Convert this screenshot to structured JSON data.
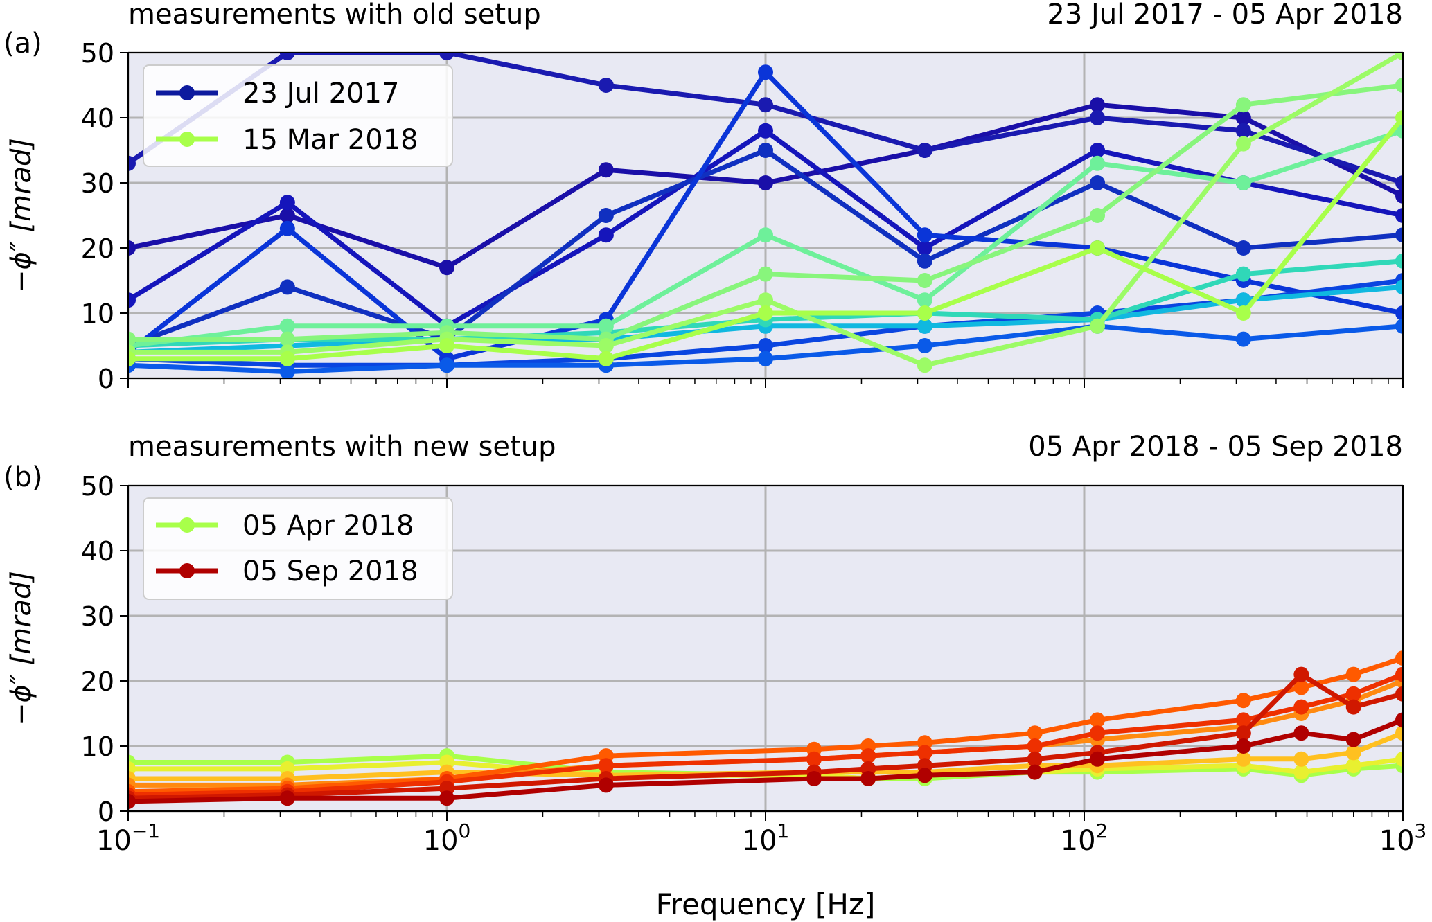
{
  "chart_data": [
    {
      "type": "line",
      "panel_label": "(a)",
      "title_left": "measurements with old setup",
      "title_right": "23 Jul 2017 - 05 Apr 2018",
      "ylabel": "−ϕ″ [mrad]",
      "xlabel": "",
      "xscale": "log",
      "xlim": [
        0.1,
        1000
      ],
      "ylim": [
        0,
        50
      ],
      "yticks": [
        "0",
        "10",
        "20",
        "30",
        "40",
        "50"
      ],
      "grid": true,
      "legend_position": "upper-left",
      "legend": [
        {
          "label": "23 Jul 2017",
          "color": "#0d1a9e"
        },
        {
          "label": "15 Mar 2018",
          "color": "#a8ff4a"
        }
      ],
      "frequencies_hz": [
        0.1,
        0.316,
        1,
        3.16,
        10,
        31.6,
        110,
        316,
        1000
      ],
      "series": [
        {
          "color": "#1a0fa8",
          "values": [
            20,
            25,
            17,
            32,
            30,
            35,
            42,
            40,
            28
          ]
        },
        {
          "color": "#1a1ab0",
          "values": [
            33,
            50,
            50,
            45,
            42,
            35,
            40,
            38,
            30
          ]
        },
        {
          "color": "#1515bb",
          "values": [
            12,
            27,
            8,
            22,
            38,
            20,
            35,
            30,
            25
          ]
        },
        {
          "color": "#1030c0",
          "values": [
            5,
            14,
            6,
            25,
            35,
            18,
            30,
            20,
            22
          ]
        },
        {
          "color": "#0a35d8",
          "values": [
            4,
            23,
            3,
            9,
            47,
            22,
            20,
            15,
            10
          ]
        },
        {
          "color": "#0a45e0",
          "values": [
            3,
            2,
            2,
            3,
            5,
            8,
            10,
            12,
            15
          ]
        },
        {
          "color": "#0a5ae8",
          "values": [
            2,
            1,
            2,
            2,
            3,
            5,
            8,
            6,
            8
          ]
        },
        {
          "color": "#10b8e0",
          "values": [
            4,
            5,
            6,
            6,
            8,
            8,
            9,
            12,
            14
          ]
        },
        {
          "color": "#30d8b8",
          "values": [
            5,
            6,
            6,
            7,
            9,
            10,
            9,
            16,
            18
          ]
        },
        {
          "color": "#6ef09a",
          "values": [
            5,
            8,
            8,
            8,
            22,
            12,
            33,
            30,
            38
          ]
        },
        {
          "color": "#88f57c",
          "values": [
            6,
            6,
            7,
            6,
            16,
            15,
            25,
            42,
            45
          ]
        },
        {
          "color": "#9cfb66",
          "values": [
            4,
            4,
            6,
            5,
            12,
            2,
            8,
            36,
            50
          ]
        },
        {
          "color": "#a8ff4a",
          "values": [
            3,
            3,
            5,
            3,
            10,
            10,
            20,
            10,
            40
          ]
        }
      ]
    },
    {
      "type": "line",
      "panel_label": "(b)",
      "title_left": "measurements with new setup",
      "title_right": "05 Apr 2018 - 05 Sep 2018",
      "ylabel": "−ϕ″ [mrad]",
      "xlabel": "Frequency [Hz]",
      "xscale": "log",
      "xlim": [
        0.1,
        1000
      ],
      "ylim": [
        0,
        50
      ],
      "yticks": [
        "0",
        "10",
        "20",
        "30",
        "40",
        "50"
      ],
      "xticks": [
        {
          "base": "10",
          "exp": "−1"
        },
        {
          "base": "10",
          "exp": "0"
        },
        {
          "base": "10",
          "exp": "1"
        },
        {
          "base": "10",
          "exp": "2"
        },
        {
          "base": "10",
          "exp": "3"
        }
      ],
      "grid": true,
      "legend_position": "upper-left",
      "legend": [
        {
          "label": "05 Apr 2018",
          "color": "#a8ff4a"
        },
        {
          "label": "05 Sep 2018",
          "color": "#b00000"
        }
      ],
      "frequencies_hz": [
        0.1,
        0.316,
        1,
        3.16,
        14.2,
        21,
        31.6,
        70,
        110,
        316,
        480,
        700,
        1000
      ],
      "series": [
        {
          "color": "#a8ff4a",
          "values": [
            7.5,
            7.5,
            8.5,
            6,
            5.5,
            5,
            5,
            6,
            6,
            6.5,
            5.5,
            6.5,
            7
          ]
        },
        {
          "color": "#e8f030",
          "values": [
            6.5,
            6.5,
            7.5,
            5.5,
            5.5,
            5,
            5.5,
            6,
            6.5,
            7,
            6,
            7,
            8
          ]
        },
        {
          "color": "#ffc020",
          "values": [
            5,
            5,
            6,
            5.5,
            6,
            6,
            6,
            7,
            7,
            8,
            8,
            9,
            12
          ]
        },
        {
          "color": "#ff8a10",
          "values": [
            4,
            4,
            5,
            7,
            8,
            8.5,
            9,
            10,
            11,
            13,
            15,
            17,
            20
          ]
        },
        {
          "color": "#ff5a00",
          "values": [
            3,
            3.5,
            5,
            8.5,
            9.5,
            10,
            10.5,
            12,
            14,
            17,
            19,
            21,
            23.5
          ]
        },
        {
          "color": "#ee3000",
          "values": [
            2.5,
            3,
            4.5,
            7,
            8,
            8.5,
            9,
            10,
            12,
            14,
            16,
            18,
            21
          ]
        },
        {
          "color": "#d01800",
          "values": [
            2,
            2.5,
            3.5,
            5,
            6,
            6.5,
            7,
            8,
            9,
            12,
            21,
            16,
            18
          ]
        },
        {
          "color": "#b00000",
          "values": [
            1.5,
            2,
            2,
            4,
            5,
            5,
            5.5,
            6,
            8,
            10,
            12,
            11,
            14
          ]
        }
      ]
    }
  ]
}
